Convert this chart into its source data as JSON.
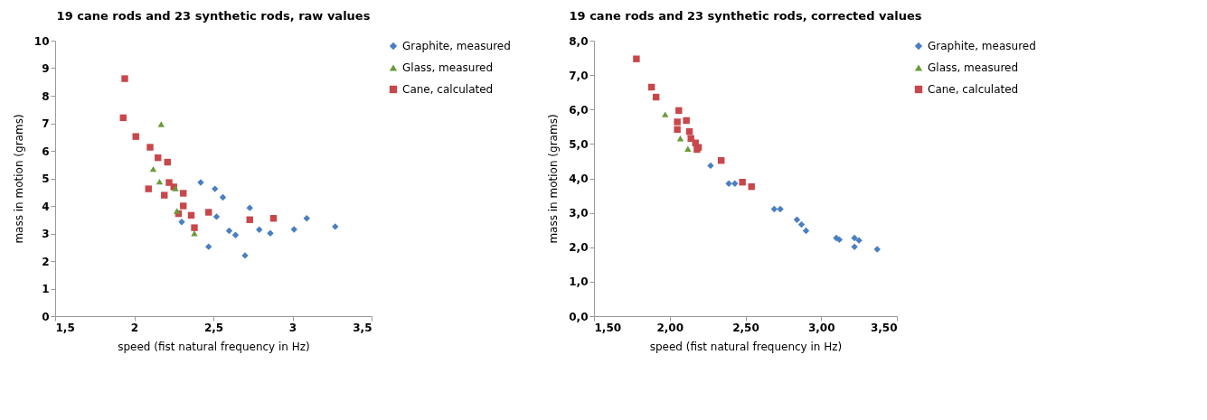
{
  "chart_data": [
    {
      "type": "scatter",
      "title": "19 cane rods and 23 synthetic rods, raw values",
      "xlabel": "speed (fist natural frequency in Hz)",
      "ylabel": "mass in motion (grams)",
      "legend": "right",
      "grid": false,
      "xlim": [
        1.5,
        3.5
      ],
      "xticks": [
        {
          "value": 1.5,
          "label": "1,5"
        },
        2,
        {
          "value": 2.5,
          "label": "2,5"
        },
        3,
        {
          "value": 3.5,
          "label": "3,5"
        }
      ],
      "ylim": [
        0,
        10
      ],
      "yticks": [
        0,
        1,
        2,
        3,
        4,
        5,
        6,
        7,
        8,
        9,
        10
      ],
      "series": [
        {
          "name": "Graphite, measured",
          "color": "#4a7fc1",
          "marker": "diamond",
          "x": [
            2.42,
            2.51,
            2.56,
            2.52,
            2.3,
            2.47,
            2.6,
            2.64,
            2.73,
            2.79,
            2.86,
            2.7,
            3.01,
            3.09,
            3.27
          ],
          "values": [
            4.85,
            4.62,
            4.31,
            3.61,
            3.42,
            2.52,
            3.1,
            2.94,
            3.93,
            3.14,
            3.01,
            2.2,
            3.15,
            3.55,
            3.25
          ]
        },
        {
          "name": "Glass, measured",
          "color": "#6a9a3a",
          "marker": "triangle",
          "x": [
            2.17,
            2.12,
            2.16,
            2.26,
            2.27,
            2.38
          ],
          "values": [
            6.97,
            5.34,
            4.88,
            4.64,
            3.82,
            3.01
          ]
        },
        {
          "name": "Cane, calculated",
          "color": "#c8474a",
          "marker": "square",
          "x": [
            1.94,
            1.93,
            2.01,
            2.1,
            2.15,
            2.21,
            2.09,
            2.19,
            2.22,
            2.25,
            2.31,
            2.31,
            2.28,
            2.36,
            2.38,
            2.47,
            2.73,
            2.88
          ],
          "values": [
            8.62,
            7.2,
            6.52,
            6.13,
            5.75,
            5.59,
            4.62,
            4.39,
            4.85,
            4.69,
            4.46,
            4.0,
            3.72,
            3.66,
            3.21,
            3.77,
            3.5,
            3.55
          ]
        }
      ]
    },
    {
      "type": "scatter",
      "title": "19 cane rods and 23 synthetic rods, corrected values",
      "xlabel": "speed (fist natural frequency in Hz)",
      "ylabel": "mass in motion (grams)",
      "legend": "right",
      "grid": false,
      "xlim": [
        1.5,
        3.5
      ],
      "xticks": [
        {
          "value": 1.5,
          "label": "1,50"
        },
        {
          "value": 2,
          "label": "2,00"
        },
        {
          "value": 2.5,
          "label": "2,50"
        },
        {
          "value": 3,
          "label": "3,00"
        },
        {
          "value": 3.5,
          "label": "3,50"
        }
      ],
      "ylim": [
        0,
        8
      ],
      "yticks": [
        {
          "value": 0,
          "label": "0,0"
        },
        {
          "value": 1,
          "label": "1,0"
        },
        {
          "value": 2,
          "label": "2,0"
        },
        {
          "value": 3,
          "label": "3,0"
        },
        {
          "value": 4,
          "label": "4,0"
        },
        {
          "value": 5,
          "label": "5,0"
        },
        {
          "value": 6,
          "label": "6,0"
        },
        {
          "value": 7,
          "label": "7,0"
        },
        {
          "value": 8,
          "label": "8,0"
        }
      ],
      "series": [
        {
          "name": "Graphite, measured",
          "color": "#4a7fc1",
          "marker": "diamond",
          "x": [
            2.27,
            2.39,
            2.43,
            2.69,
            2.73,
            2.84,
            2.87,
            2.9,
            3.1,
            3.12,
            3.22,
            3.22,
            3.25,
            3.37
          ],
          "values": [
            4.37,
            3.85,
            3.85,
            3.11,
            3.11,
            2.8,
            2.66,
            2.48,
            2.27,
            2.22,
            2.27,
            2.01,
            2.2,
            1.94
          ]
        },
        {
          "name": "Glass, measured",
          "color": "#6a9a3a",
          "marker": "triangle",
          "x": [
            1.97,
            2.07,
            2.12
          ],
          "values": [
            5.86,
            5.16,
            4.86
          ]
        },
        {
          "name": "Cane, calculated",
          "color": "#c8474a",
          "marker": "square",
          "x": [
            1.78,
            1.88,
            1.91,
            2.06,
            2.05,
            2.11,
            2.05,
            2.13,
            2.14,
            2.17,
            2.19,
            2.18,
            2.34,
            2.48,
            2.54
          ],
          "values": [
            7.47,
            6.65,
            6.36,
            5.97,
            5.64,
            5.68,
            5.42,
            5.36,
            5.16,
            5.03,
            4.9,
            4.84,
            4.52,
            3.89,
            3.76
          ]
        }
      ]
    }
  ]
}
